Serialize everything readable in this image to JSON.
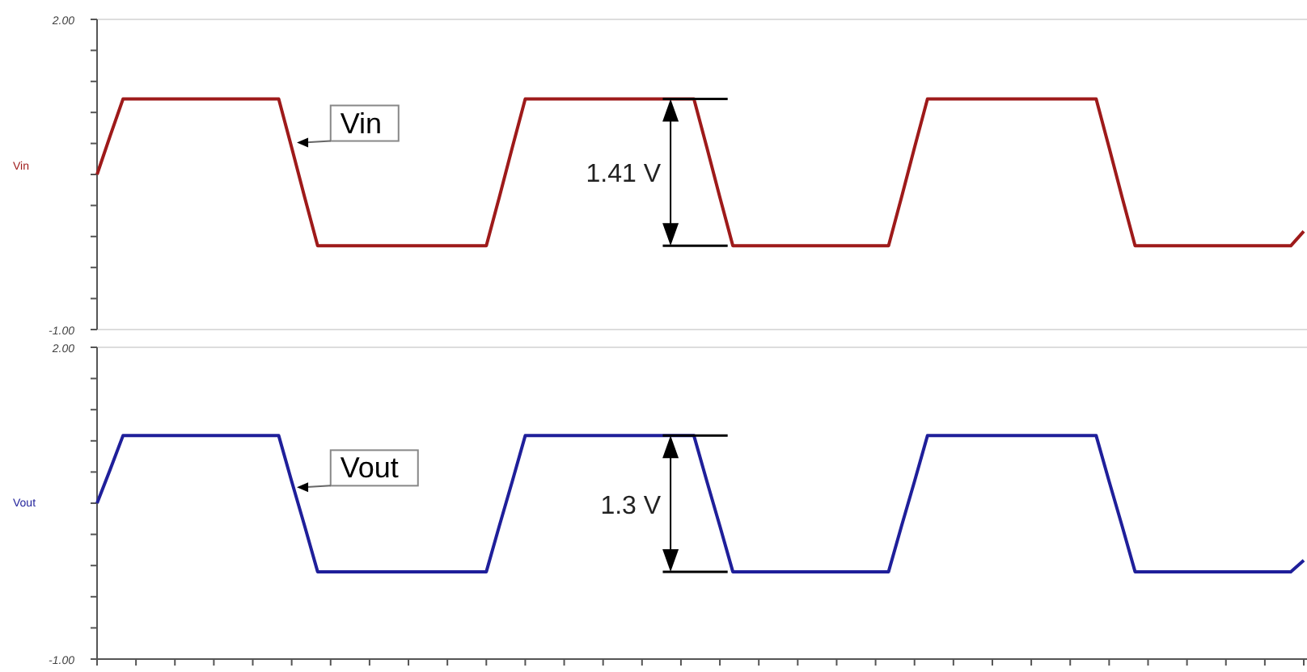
{
  "chart_data": [
    {
      "type": "line",
      "ylabel": "Vin",
      "tick_labels": "y",
      "ylim": [
        -1,
        2
      ],
      "yticks": [
        {
          "value": -1,
          "label": "-1.00"
        },
        {
          "value": -0.7,
          "label": null
        },
        {
          "value": -0.4,
          "label": null
        },
        {
          "value": -0.1,
          "label": null
        },
        {
          "value": 0.2,
          "label": null
        },
        {
          "value": 0.5,
          "label": null
        },
        {
          "value": 0.8,
          "label": null
        },
        {
          "value": 1.1,
          "label": null
        },
        {
          "value": 1.4,
          "label": null
        },
        {
          "value": 1.7,
          "label": null
        },
        {
          "value": 2,
          "label": "2.00"
        }
      ],
      "categories": [
        null,
        null,
        null,
        null,
        null,
        null,
        null,
        null,
        null,
        null,
        null,
        null,
        null,
        null,
        null,
        null,
        null,
        null,
        null,
        null,
        null,
        null,
        null,
        null,
        null,
        null,
        null,
        null,
        null,
        null,
        null,
        null,
        null,
        null,
        null,
        null,
        null,
        null,
        null,
        null,
        null,
        null,
        null,
        null,
        null,
        null,
        null,
        null,
        null,
        null,
        null,
        null,
        null,
        null,
        null,
        null,
        null,
        null,
        null,
        null,
        null,
        null,
        null,
        null,
        null,
        null,
        null,
        null,
        null,
        null,
        null,
        null,
        null,
        null,
        null,
        null,
        null,
        null,
        null,
        null,
        null,
        null,
        null,
        null,
        null,
        null,
        null,
        null,
        null,
        null,
        null,
        null,
        null,
        null
      ],
      "series": [
        {
          "color": "#9e1a1a",
          "values": [
            0.5,
            0.87,
            1.23,
            1.23,
            1.23,
            1.23,
            1.23,
            1.23,
            1.23,
            1.23,
            1.23,
            1.23,
            1.23,
            1.23,
            1.23,
            0.76,
            0.28,
            -0.19,
            -0.19,
            -0.19,
            -0.19,
            -0.19,
            -0.19,
            -0.19,
            -0.19,
            -0.19,
            -0.19,
            -0.19,
            -0.19,
            -0.19,
            -0.19,
            0.28,
            0.76,
            1.23,
            1.23,
            1.23,
            1.23,
            1.23,
            1.23,
            1.23,
            1.23,
            1.23,
            1.23,
            1.23,
            1.23,
            1.23,
            1.23,
            0.76,
            0.28,
            -0.19,
            -0.19,
            -0.19,
            -0.19,
            -0.19,
            -0.19,
            -0.19,
            -0.19,
            -0.19,
            -0.19,
            -0.19,
            -0.19,
            -0.19,
            0.28,
            0.76,
            1.23,
            1.23,
            1.23,
            1.23,
            1.23,
            1.23,
            1.23,
            1.23,
            1.23,
            1.23,
            1.23,
            1.23,
            1.23,
            1.23,
            0.76,
            0.28,
            -0.19,
            -0.19,
            -0.19,
            -0.19,
            -0.19,
            -0.19,
            -0.19,
            -0.19,
            -0.19,
            -0.19,
            -0.19,
            -0.19,
            -0.19,
            -0.05
          ]
        }
      ],
      "annotations": [
        "Vin",
        "1.41 V"
      ]
    },
    {
      "type": "line",
      "ylabel": "Vout",
      "tick_labels": "y",
      "ylim": [
        -1,
        2
      ],
      "yticks": [
        {
          "value": -1,
          "label": "-1.00"
        },
        {
          "value": -0.7,
          "label": null
        },
        {
          "value": -0.4,
          "label": null
        },
        {
          "value": -0.1,
          "label": null
        },
        {
          "value": 0.2,
          "label": null
        },
        {
          "value": 0.5,
          "label": null
        },
        {
          "value": 0.8,
          "label": null
        },
        {
          "value": 1.1,
          "label": null
        },
        {
          "value": 1.4,
          "label": null
        },
        {
          "value": 1.7,
          "label": null
        },
        {
          "value": 2,
          "label": "2.00"
        }
      ],
      "categories": [
        null,
        null,
        null,
        null,
        null,
        null,
        null,
        null,
        null,
        null,
        null,
        null,
        null,
        null,
        null,
        null,
        null,
        null,
        null,
        null,
        null,
        null,
        null,
        null,
        null,
        null,
        null,
        null,
        null,
        null,
        null,
        null,
        null,
        null,
        null,
        null,
        null,
        null,
        null,
        null,
        null,
        null,
        null,
        null,
        null,
        null,
        null,
        null,
        null,
        null,
        null,
        null,
        null,
        null,
        null,
        null,
        null,
        null,
        null,
        null,
        null,
        null,
        null,
        null,
        null,
        null,
        null,
        null,
        null,
        null,
        null,
        null,
        null,
        null,
        null,
        null,
        null,
        null,
        null,
        null,
        null,
        null,
        null,
        null,
        null,
        null,
        null,
        null,
        null,
        null,
        null,
        null,
        null,
        null
      ],
      "series": [
        {
          "color": "#1f1f9a",
          "values": [
            0.5,
            0.82,
            1.15,
            1.15,
            1.15,
            1.15,
            1.15,
            1.15,
            1.15,
            1.15,
            1.15,
            1.15,
            1.15,
            1.15,
            1.15,
            0.71,
            0.28,
            -0.16,
            -0.16,
            -0.16,
            -0.16,
            -0.16,
            -0.16,
            -0.16,
            -0.16,
            -0.16,
            -0.16,
            -0.16,
            -0.16,
            -0.16,
            -0.16,
            0.28,
            0.71,
            1.15,
            1.15,
            1.15,
            1.15,
            1.15,
            1.15,
            1.15,
            1.15,
            1.15,
            1.15,
            1.15,
            1.15,
            1.15,
            1.15,
            0.71,
            0.28,
            -0.16,
            -0.16,
            -0.16,
            -0.16,
            -0.16,
            -0.16,
            -0.16,
            -0.16,
            -0.16,
            -0.16,
            -0.16,
            -0.16,
            -0.16,
            0.28,
            0.71,
            1.15,
            1.15,
            1.15,
            1.15,
            1.15,
            1.15,
            1.15,
            1.15,
            1.15,
            1.15,
            1.15,
            1.15,
            1.15,
            1.15,
            0.71,
            0.28,
            -0.16,
            -0.16,
            -0.16,
            -0.16,
            -0.16,
            -0.16,
            -0.16,
            -0.16,
            -0.16,
            -0.16,
            -0.16,
            -0.16,
            -0.16,
            -0.05
          ]
        }
      ],
      "annotations": [
        "Vout",
        "1.3 V"
      ]
    }
  ]
}
